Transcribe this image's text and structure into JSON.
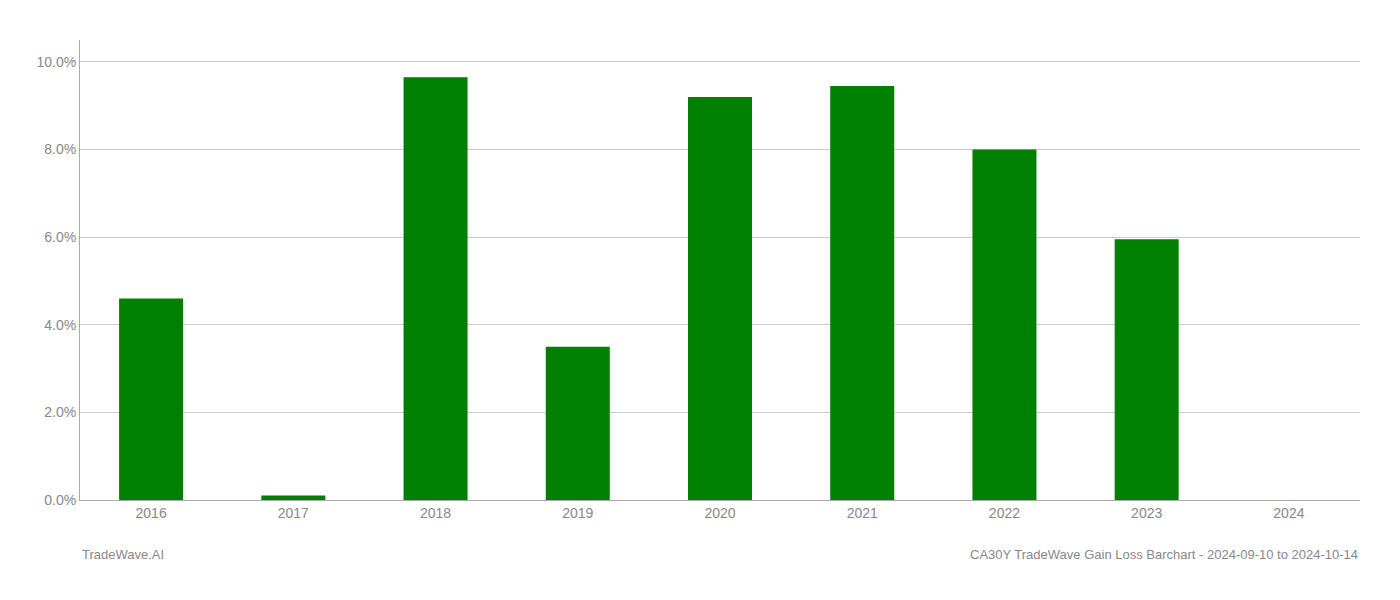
{
  "chart_data": {
    "type": "bar",
    "categories": [
      "2016",
      "2017",
      "2018",
      "2019",
      "2020",
      "2021",
      "2022",
      "2023",
      "2024"
    ],
    "values": [
      4.6,
      0.1,
      9.65,
      3.5,
      9.2,
      9.45,
      8.0,
      5.95,
      0.0
    ],
    "color": "#008000",
    "ylim": [
      0,
      10.5
    ],
    "yticks": [
      {
        "value": 0.0,
        "label": "0.0%"
      },
      {
        "value": 2.0,
        "label": "2.0%"
      },
      {
        "value": 4.0,
        "label": "4.0%"
      },
      {
        "value": 6.0,
        "label": "6.0%"
      },
      {
        "value": 8.0,
        "label": "8.0%"
      },
      {
        "value": 10.0,
        "label": "10.0%"
      }
    ],
    "grid": true,
    "annotations": [
      "TradeWave.AI",
      "CA30Y TradeWave Gain Loss Barchart - 2024-09-10 to 2024-10-14"
    ]
  }
}
